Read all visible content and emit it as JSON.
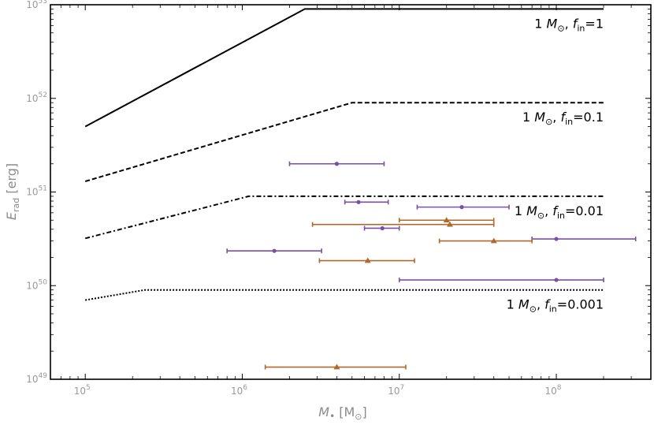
{
  "chart_data": {
    "type": "scatter",
    "x_scale": "log",
    "y_scale": "log",
    "xlim": [
      60000,
      400000000
    ],
    "ylim": [
      1e+49,
      1e+53
    ],
    "xlabel": {
      "main": "M",
      "bullet": "•",
      "unit_open": "[M",
      "unit_sub": "⊙",
      "unit_close": "]"
    },
    "ylabel": {
      "main": "E",
      "sub": "rad",
      "unit": "[erg]"
    },
    "grid": false,
    "x_ticks": [
      {
        "value": 100000,
        "base": "10",
        "exp": "5"
      },
      {
        "value": 1000000,
        "base": "10",
        "exp": "6"
      },
      {
        "value": 10000000,
        "base": "10",
        "exp": "7"
      },
      {
        "value": 100000000,
        "base": "10",
        "exp": "8"
      }
    ],
    "y_ticks": [
      {
        "value": 1e+49,
        "base": "10",
        "exp": "49"
      },
      {
        "value": 1e+50,
        "base": "10",
        "exp": "50"
      },
      {
        "value": 1e+51,
        "base": "10",
        "exp": "51"
      },
      {
        "value": 1e+52,
        "base": "10",
        "exp": "52"
      },
      {
        "value": 1e+53,
        "base": "10",
        "exp": "53"
      }
    ],
    "curves": [
      {
        "id": "fin-1",
        "style": "solid",
        "color": "#000000",
        "points": [
          [
            100000,
            5e+51
          ],
          [
            2500000,
            9e+52
          ],
          [
            200000000,
            9e+52
          ]
        ],
        "label": {
          "mass": "1 M",
          "sun": "⊙",
          "sep": ", ",
          "f": "f",
          "f_sub": "in",
          "val": "=1"
        }
      },
      {
        "id": "fin-0.1",
        "style": "dashed",
        "color": "#000000",
        "points": [
          [
            100000,
            1.3e+51
          ],
          [
            5000000,
            9e+51
          ],
          [
            200000000,
            9e+51
          ]
        ],
        "label": {
          "mass": "1 M",
          "sun": "⊙",
          "sep": ", ",
          "f": "f",
          "f_sub": "in",
          "val": "=0.1"
        }
      },
      {
        "id": "fin-0.01",
        "style": "dashdot",
        "color": "#000000",
        "points": [
          [
            100000,
            3.2e+50
          ],
          [
            1100000,
            9e+50
          ],
          [
            200000000,
            9e+50
          ]
        ],
        "label": {
          "mass": "1 M",
          "sun": "⊙",
          "sep": ", ",
          "f": "f",
          "f_sub": "in",
          "val": "=0.01"
        }
      },
      {
        "id": "fin-0.001",
        "style": "dotted",
        "color": "#000000",
        "points": [
          [
            100000,
            7e+49
          ],
          [
            240000,
            9e+49
          ],
          [
            200000000,
            9e+49
          ]
        ],
        "label": {
          "mass": "1 M",
          "sun": "⊙",
          "sep": ", ",
          "f": "f",
          "f_sub": "in",
          "val": "=0.001"
        }
      }
    ],
    "series": [
      {
        "marker": "circle",
        "color": "#7b4fa6",
        "points": [
          {
            "x": 4000000,
            "xlo": 2000000,
            "xhi": 8000000,
            "y": 2e+51
          },
          {
            "x": 5500000,
            "xlo": 4500000,
            "xhi": 8500000,
            "y": 7.8e+50
          },
          {
            "x": 25000000,
            "xlo": 13000000,
            "xhi": 50000000,
            "y": 6.9e+50
          },
          {
            "x": 7800000,
            "xlo": 6000000,
            "xhi": 10000000,
            "y": 4.1e+50
          },
          {
            "x": 1600000,
            "xlo": 800000,
            "xhi": 3200000,
            "y": 2.35e+50
          },
          {
            "x": 100000000,
            "xlo": 70000000,
            "xhi": 320000000,
            "y": 3.15e+50
          },
          {
            "x": 100000000,
            "xlo": 10000000,
            "xhi": 200000000,
            "y": 1.15e+50
          }
        ]
      },
      {
        "marker": "triangle",
        "color": "#b0692d",
        "points": [
          {
            "x": 20000000,
            "xlo": 10000000,
            "xhi": 40000000,
            "y": 5e+50
          },
          {
            "x": 21000000,
            "xlo": 2800000,
            "xhi": 40000000,
            "y": 4.5e+50
          },
          {
            "x": 40000000,
            "xlo": 18000000,
            "xhi": 70000000,
            "y": 3e+50
          },
          {
            "x": 6300000,
            "xlo": 3100000,
            "xhi": 12500000,
            "y": 1.85e+50
          },
          {
            "x": 4000000,
            "xlo": 1400000,
            "xhi": 11000000,
            "y": 1.35e+49
          }
        ]
      }
    ]
  }
}
